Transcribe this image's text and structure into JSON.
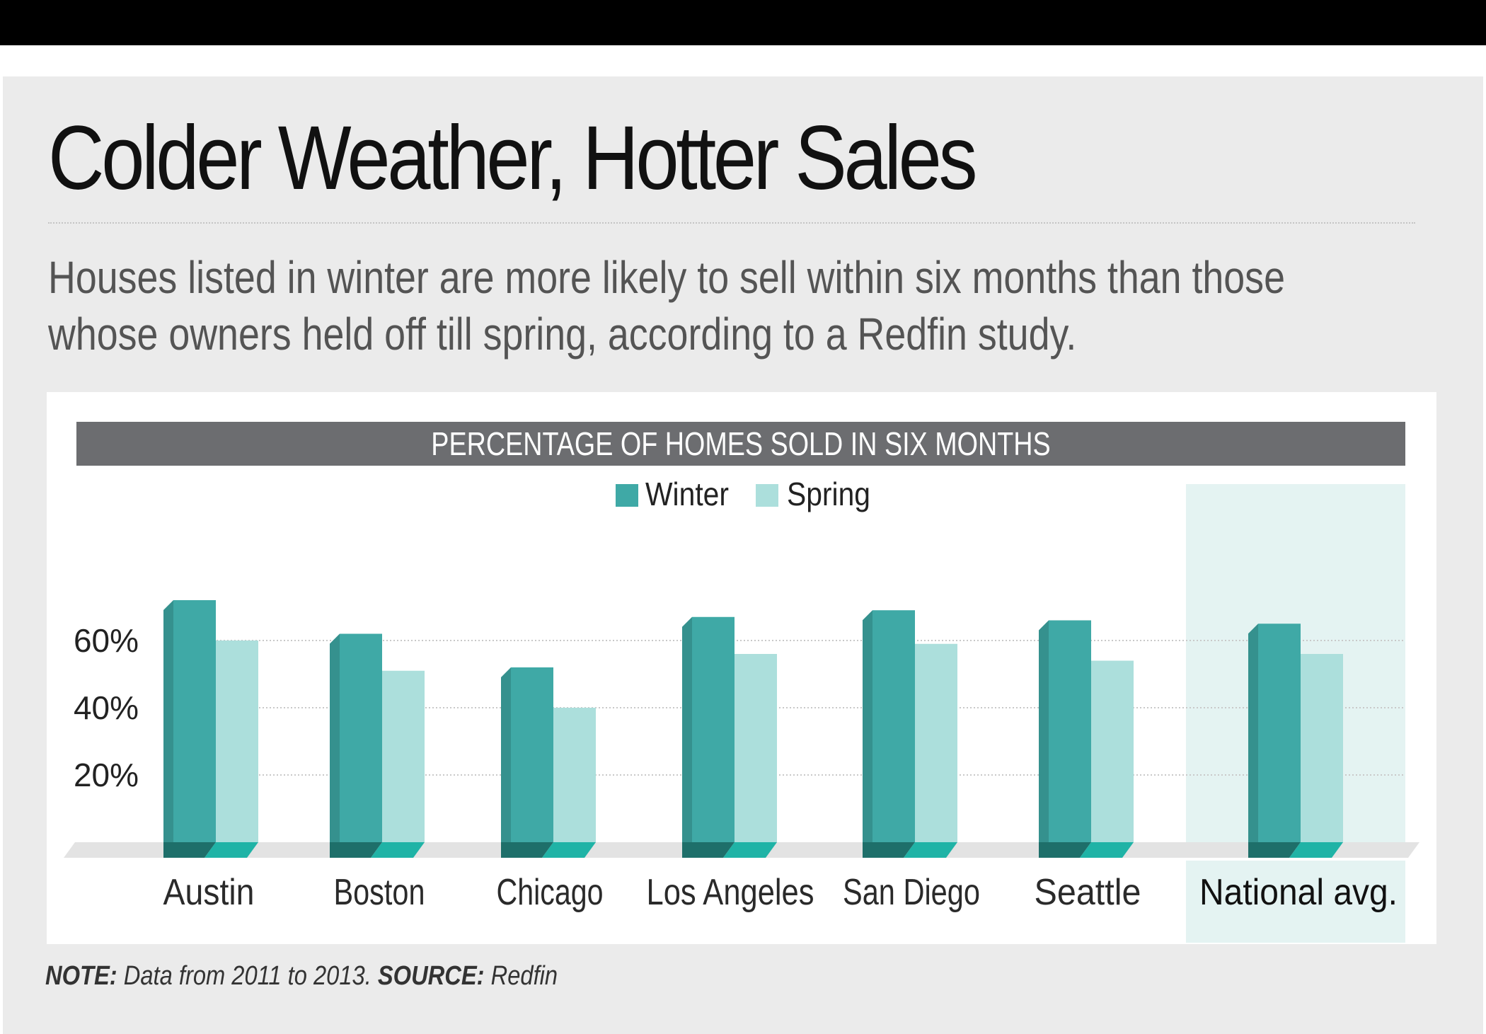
{
  "title": "Colder Weather, Hotter Sales",
  "subtitle": "Houses listed in winter are more likely to sell within six months than those whose owners held off till spring, according to a Redfin study.",
  "note": {
    "note_label": "NOTE:",
    "note_text": "Data from 2011 to 2013.",
    "source_label": "SOURCE:",
    "source_text": "Redfin"
  },
  "colors": {
    "winter": "#3fa9a6",
    "winter_side": "#35918e",
    "spring": "#acdfdc",
    "highlight_bg": "#e4f3f2",
    "banner": "#6c6d70"
  },
  "chart_data": {
    "type": "bar",
    "title": "PERCENTAGE OF HOMES SOLD IN SIX MONTHS",
    "xlabel": "",
    "ylabel": "",
    "ylim": [
      0,
      80
    ],
    "yticks": [
      20,
      40,
      60
    ],
    "ytick_labels": [
      "20%",
      "40%",
      "60%"
    ],
    "grid": true,
    "legend_position": "top-center",
    "categories": [
      "Austin",
      "Boston",
      "Chicago",
      "Los Angeles",
      "San Diego",
      "Seattle",
      "National avg."
    ],
    "highlighted_category": "National avg.",
    "series": [
      {
        "name": "Winter",
        "values": [
          72,
          62,
          52,
          67,
          69,
          66,
          65
        ]
      },
      {
        "name": "Spring",
        "values": [
          60,
          51,
          40,
          56,
          59,
          54,
          56
        ]
      }
    ]
  }
}
